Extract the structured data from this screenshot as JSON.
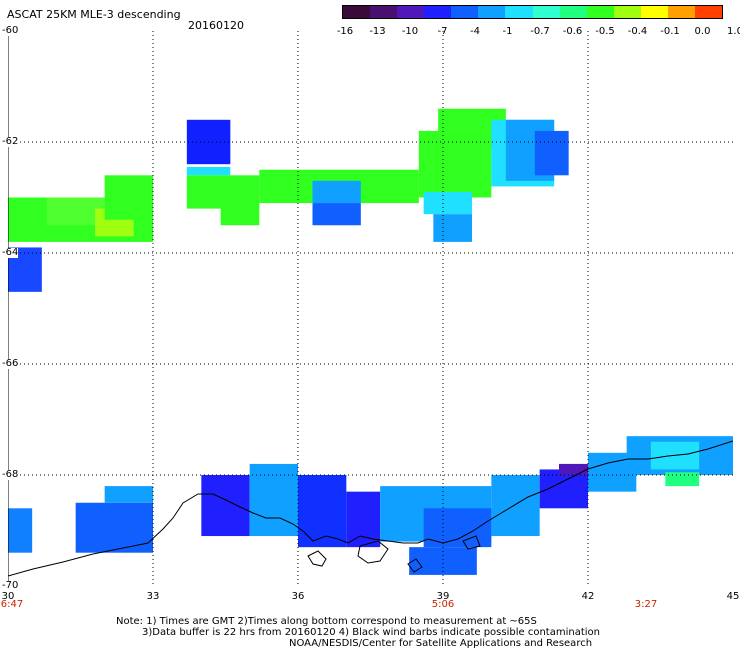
{
  "title": "ASCAT 25KM MLE-3 descending",
  "date": "20160120",
  "colorbar": {
    "colors": [
      "#3a0a3a",
      "#4a1070",
      "#5018b8",
      "#2020ff",
      "#1060ff",
      "#10a0ff",
      "#20e0ff",
      "#30ffd0",
      "#20ff80",
      "#30ff20",
      "#a0ff10",
      "#ffff00",
      "#ffa000",
      "#ff4000"
    ],
    "labels": [
      "-16",
      "-13",
      "-10",
      "-7",
      "-4",
      "-1",
      "-0.7",
      "-0.6",
      "-0.5",
      "-0.4",
      "-0.1",
      "0.0",
      "1.0"
    ]
  },
  "axes": {
    "x_ticks": [
      "30",
      "33",
      "36",
      "39",
      "42",
      "45"
    ],
    "y_ticks": [
      "-60",
      "-62",
      "-64",
      "-66",
      "-68",
      "-70"
    ],
    "x_range": [
      30,
      45
    ],
    "y_range": [
      -70,
      -60
    ]
  },
  "times": [
    {
      "lon": 30,
      "label": "6:47"
    },
    {
      "lon": 39,
      "label": "5:06"
    },
    {
      "lon": 43.2,
      "label": "3:27"
    }
  ],
  "notes": [
    "Note: 1) Times are GMT 2)Times along bottom correspond to measurement at ~65S",
    "3)Data buffer is 22 hrs from 20160120 4) Black wind barbs indicate possible contamination",
    "NOAA/NESDIS/Center for Satellite Applications and Research"
  ],
  "data_regions": [
    {
      "lon": [
        30.0,
        33.0
      ],
      "lat": [
        -63.8,
        -63.0
      ],
      "color": "#30ff20"
    },
    {
      "lon": [
        30.8,
        32.2
      ],
      "lat": [
        -63.5,
        -63.0
      ],
      "color": "#50ff30"
    },
    {
      "lon": [
        31.8,
        32.6
      ],
      "lat": [
        -63.7,
        -63.2
      ],
      "color": "#a0ff10"
    },
    {
      "lon": [
        32.0,
        33.0
      ],
      "lat": [
        -63.4,
        -62.6
      ],
      "color": "#30ff20"
    },
    {
      "lon": [
        30.0,
        30.7
      ],
      "lat": [
        -64.7,
        -63.9
      ],
      "color": "#1848ff"
    },
    {
      "lon": [
        33.7,
        34.6
      ],
      "lat": [
        -62.4,
        -61.6
      ],
      "color": "#1020ff"
    },
    {
      "lon": [
        33.7,
        34.6
      ],
      "lat": [
        -62.6,
        -62.45
      ],
      "color": "#20e0ff"
    },
    {
      "lon": [
        33.7,
        35.2
      ],
      "lat": [
        -63.2,
        -62.6
      ],
      "color": "#30ff20"
    },
    {
      "lon": [
        34.4,
        35.2
      ],
      "lat": [
        -63.5,
        -63.1
      ],
      "color": "#30ff20"
    },
    {
      "lon": [
        35.2,
        38.5
      ],
      "lat": [
        -63.1,
        -62.5
      ],
      "color": "#30ff20"
    },
    {
      "lon": [
        36.3,
        37.3
      ],
      "lat": [
        -63.1,
        -62.7
      ],
      "color": "#10a0ff"
    },
    {
      "lon": [
        36.3,
        37.3
      ],
      "lat": [
        -63.5,
        -63.1
      ],
      "color": "#1060ff"
    },
    {
      "lon": [
        38.5,
        40.0
      ],
      "lat": [
        -63.0,
        -61.8
      ],
      "color": "#30ff20"
    },
    {
      "lon": [
        38.9,
        40.3
      ],
      "lat": [
        -62.1,
        -61.4
      ],
      "color": "#30ff20"
    },
    {
      "lon": [
        38.6,
        39.6
      ],
      "lat": [
        -63.3,
        -62.9
      ],
      "color": "#20e0ff"
    },
    {
      "lon": [
        38.8,
        39.6
      ],
      "lat": [
        -63.8,
        -63.3
      ],
      "color": "#10a0ff"
    },
    {
      "lon": [
        40.0,
        41.3
      ],
      "lat": [
        -62.8,
        -61.6
      ],
      "color": "#20e0ff"
    },
    {
      "lon": [
        40.3,
        41.3
      ],
      "lat": [
        -62.7,
        -61.6
      ],
      "color": "#10a0ff"
    },
    {
      "lon": [
        40.9,
        41.6
      ],
      "lat": [
        -62.6,
        -61.8
      ],
      "color": "#1060ff"
    },
    {
      "lon": [
        30.0,
        30.5
      ],
      "lat": [
        -69.4,
        -68.6
      ],
      "color": "#1080ff"
    },
    {
      "lon": [
        31.4,
        33.0
      ],
      "lat": [
        -69.4,
        -68.5
      ],
      "color": "#1060ff"
    },
    {
      "lon": [
        32.0,
        33.0
      ],
      "lat": [
        -68.5,
        -68.2
      ],
      "color": "#10a0ff"
    },
    {
      "lon": [
        34.0,
        35.0
      ],
      "lat": [
        -69.1,
        -68.0
      ],
      "color": "#2020ff"
    },
    {
      "lon": [
        35.0,
        36.0
      ],
      "lat": [
        -69.1,
        -67.8
      ],
      "color": "#10a0ff"
    },
    {
      "lon": [
        36.0,
        37.0
      ],
      "lat": [
        -69.3,
        -68.0
      ],
      "color": "#1030ff"
    },
    {
      "lon": [
        37.0,
        37.7
      ],
      "lat": [
        -69.3,
        -68.3
      ],
      "color": "#2020ff"
    },
    {
      "lon": [
        37.7,
        40.0
      ],
      "lat": [
        -69.2,
        -68.2
      ],
      "color": "#10a0ff"
    },
    {
      "lon": [
        38.6,
        40.0
      ],
      "lat": [
        -69.3,
        -68.6
      ],
      "color": "#1060ff"
    },
    {
      "lon": [
        38.3,
        39.7
      ],
      "lat": [
        -69.8,
        -69.3
      ],
      "color": "#1060ff"
    },
    {
      "lon": [
        40.0,
        41.0
      ],
      "lat": [
        -69.1,
        -68.0
      ],
      "color": "#10a0ff"
    },
    {
      "lon": [
        41.0,
        42.0
      ],
      "lat": [
        -68.6,
        -67.9
      ],
      "color": "#2020ff"
    },
    {
      "lon": [
        41.4,
        42.0
      ],
      "lat": [
        -68.0,
        -67.8
      ],
      "color": "#5018b8"
    },
    {
      "lon": [
        42.0,
        43.0
      ],
      "lat": [
        -68.3,
        -67.6
      ],
      "color": "#10a0ff"
    },
    {
      "lon": [
        42.8,
        45.0
      ],
      "lat": [
        -68.0,
        -67.3
      ],
      "color": "#10a0ff"
    },
    {
      "lon": [
        43.3,
        44.3
      ],
      "lat": [
        -67.9,
        -67.4
      ],
      "color": "#20e0ff"
    },
    {
      "lon": [
        43.6,
        44.3
      ],
      "lat": [
        -68.2,
        -67.95
      ],
      "color": "#20ff80"
    }
  ]
}
